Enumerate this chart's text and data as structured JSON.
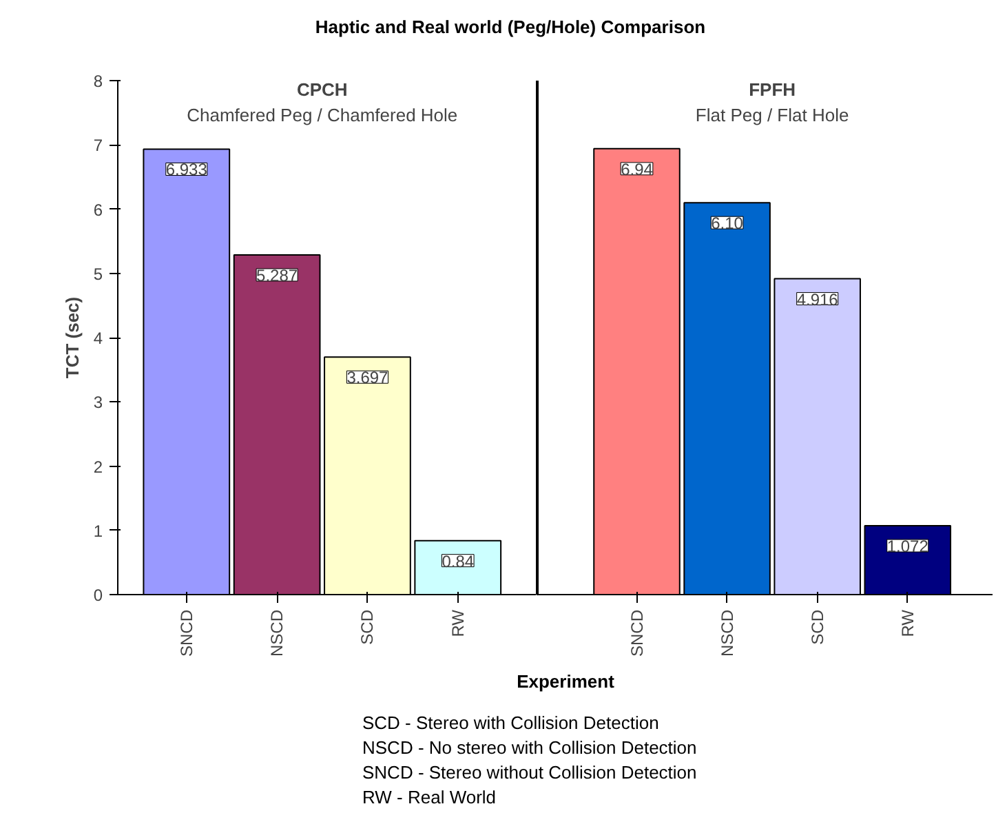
{
  "chart_data": [
    {
      "type": "bar",
      "title": "Haptic and Real world (Peg/Hole) Comparison",
      "xlabel": "Experiment",
      "ylabel": "TCT (sec)",
      "categories": [
        "SNCD",
        "NSCD",
        "SCD",
        "RW"
      ],
      "values": [
        6.933,
        5.287,
        3.697,
        0.84
      ],
      "value_labels": [
        "6.933",
        "5.287",
        "3.697",
        "0.84"
      ],
      "colors": [
        "#9999ff",
        "#993366",
        "#ffffcc",
        "#ccffff"
      ],
      "ylim": [
        0,
        8
      ],
      "yticks": [
        0,
        1,
        2,
        3,
        4,
        5,
        6,
        7,
        8
      ],
      "grid": false,
      "annotations": [
        "CPCH",
        "Chamfered Peg / Chamfered Hole",
        "SCD - Stereo with  Collision Detection",
        "NSCD - No stereo with Collision Detection",
        "SNCD - Stereo without Collision Detection",
        "RW - Real World"
      ]
    },
    {
      "type": "bar",
      "categories": [
        "SNCD",
        "NSCD",
        "SCD",
        "RW"
      ],
      "values": [
        6.94,
        6.1,
        4.916,
        1.072
      ],
      "value_labels": [
        "6.94",
        "6.10",
        "4.916",
        "1.072"
      ],
      "colors": [
        "#ff8080",
        "#0066cc",
        "#ccccff",
        "#000080"
      ],
      "ylim": [
        0,
        8
      ],
      "tick_labels": "x",
      "grid": false,
      "annotations": [
        "FPFH",
        "Flat Peg / Flat Hole"
      ]
    }
  ]
}
